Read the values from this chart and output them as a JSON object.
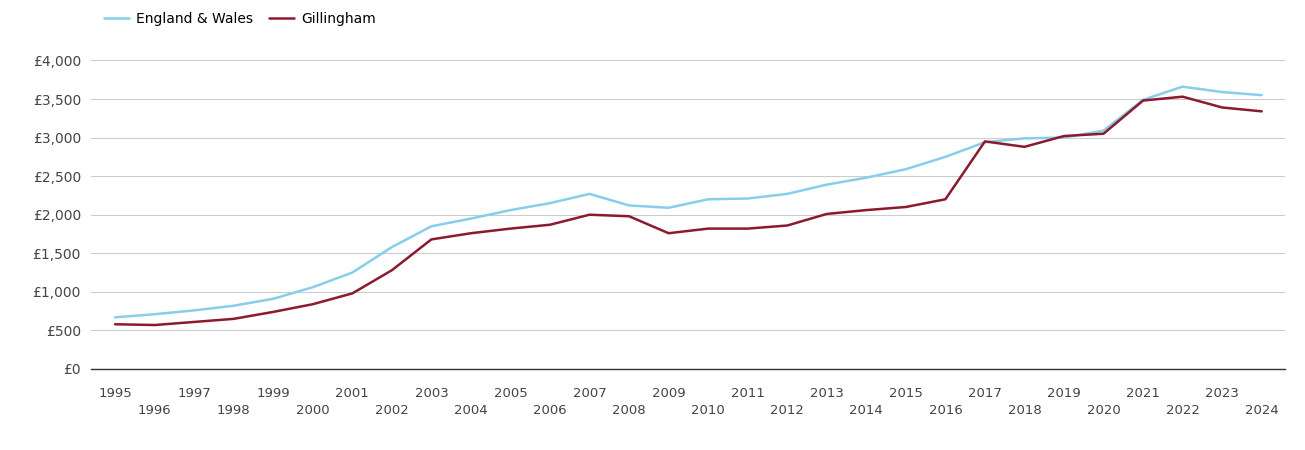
{
  "years": [
    1995,
    1996,
    1997,
    1998,
    1999,
    2000,
    2001,
    2002,
    2003,
    2004,
    2005,
    2006,
    2007,
    2008,
    2009,
    2010,
    2011,
    2012,
    2013,
    2014,
    2015,
    2016,
    2017,
    2018,
    2019,
    2020,
    2021,
    2022,
    2023,
    2024
  ],
  "gillingham": [
    580,
    570,
    610,
    650,
    740,
    840,
    980,
    1280,
    1680,
    1760,
    1820,
    1870,
    2000,
    1980,
    1760,
    1820,
    1820,
    1860,
    2010,
    2060,
    2100,
    2200,
    2950,
    2880,
    3020,
    3050,
    3480,
    3530,
    3390,
    3340
  ],
  "england_wales": [
    670,
    710,
    760,
    820,
    910,
    1060,
    1250,
    1580,
    1850,
    1950,
    2060,
    2150,
    2270,
    2120,
    2090,
    2200,
    2210,
    2270,
    2390,
    2480,
    2590,
    2750,
    2940,
    2990,
    3000,
    3090,
    3490,
    3660,
    3590,
    3550
  ],
  "gillingham_color": "#8b1a2e",
  "england_wales_color": "#87CEEB",
  "gillingham_label": "Gillingham",
  "england_wales_label": "England & Wales",
  "ytick_labels": [
    "£0",
    "£500",
    "£1,000",
    "£1,500",
    "£2,000",
    "£2,500",
    "£3,000",
    "£3,500",
    "£4,000"
  ],
  "ytick_values": [
    0,
    500,
    1000,
    1500,
    2000,
    2500,
    3000,
    3500,
    4000
  ],
  "ylim": [
    0,
    4200
  ],
  "xlim": [
    1994.4,
    2024.6
  ],
  "background_color": "#ffffff",
  "grid_color": "#cccccc",
  "line_width": 1.8
}
